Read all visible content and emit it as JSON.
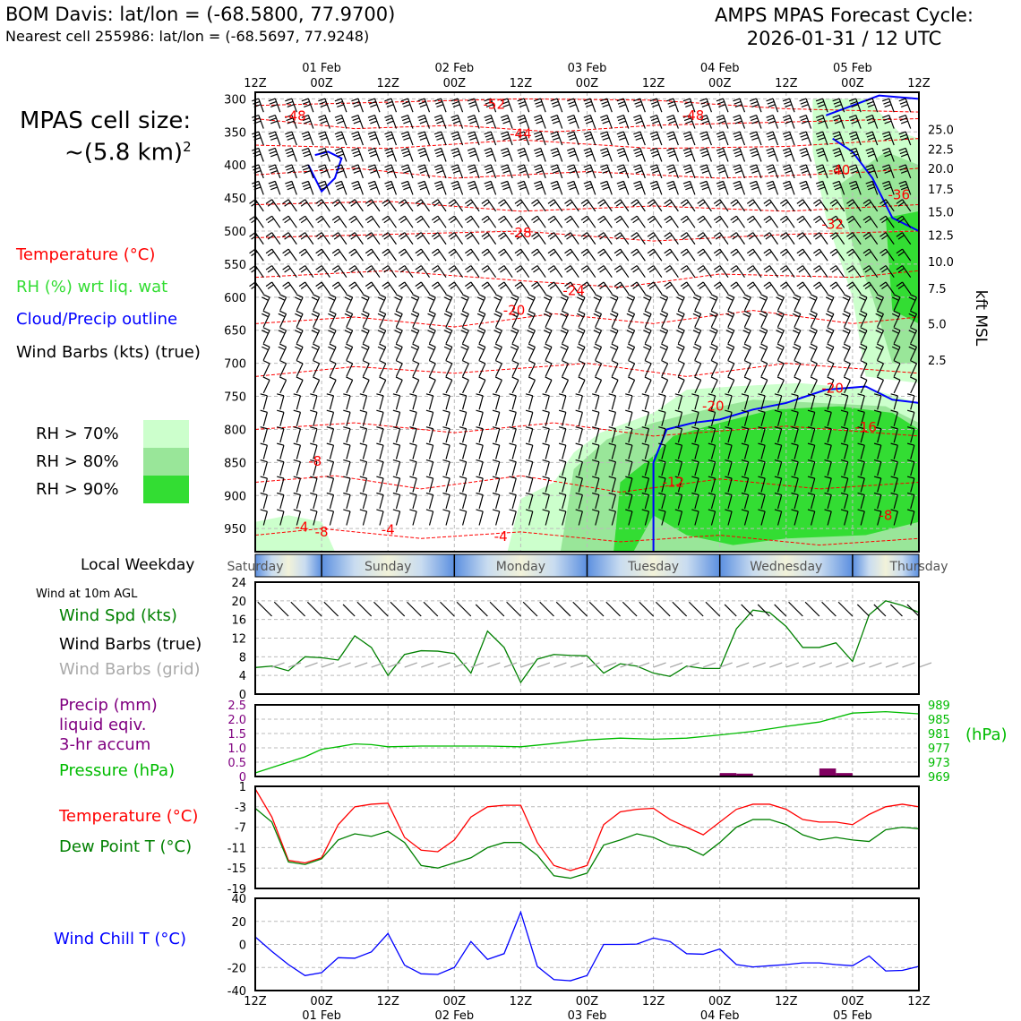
{
  "header": {
    "station": "BOM Davis: lat/lon = (-68.5800, 77.9700)",
    "nearest": "Nearest cell 255986: lat/lon = (-68.5697, 77.9248)",
    "forecast_label": "AMPS MPAS Forecast Cycle:",
    "forecast_cycle": "2026-01-31 / 12 UTC"
  },
  "side": {
    "cell_label": "MPAS cell size:",
    "cell_value": "~(5.8 km)",
    "cell_exp": "2",
    "legend_temp": "Temperature (°C)",
    "legend_rh": "RH (%) wrt liq. wat",
    "legend_cloud": "Cloud/Precip outline",
    "legend_wind": "Wind Barbs (kts) (true)",
    "rh70": "RH > 70%",
    "rh80": "RH > 80%",
    "rh90": "RH > 90%",
    "colors": {
      "rh70": "#ccffcc",
      "rh80": "#99e699",
      "rh90": "#33dd33",
      "cloud": "#0000ff",
      "temp": "#ff0000"
    }
  },
  "weekday": {
    "label": "Local Weekday",
    "days": [
      "Saturday",
      "Sunday",
      "Monday",
      "Tuesday",
      "Wednesday",
      "Thursday"
    ]
  },
  "panels": {
    "wind_title": "Wind at 10m AGL",
    "wind_spd": "Wind Spd (kts)",
    "wind_true": "Wind Barbs (true)",
    "wind_grid": "Wind Barbs (grid)",
    "precip1": "Precip (mm)",
    "precip2": "liquid eqiv.",
    "precip3": "3-hr accum",
    "pressure": "Pressure (hPa)",
    "pressure_unit": "(hPa)",
    "temp": "Temperature (°C)",
    "dewpt": "Dew Point T (°C)",
    "windchill": "Wind Chill T (°C)"
  },
  "chart_data": [
    {
      "type": "contour",
      "name": "time-height cross section",
      "x_ticks": [
        "12Z",
        "00Z",
        "12Z",
        "00Z",
        "12Z",
        "00Z",
        "12Z",
        "00Z",
        "12Z",
        "00Z",
        "12Z"
      ],
      "date_ticks": [
        "01 Feb",
        "02 Feb",
        "03 Feb",
        "04 Feb",
        "05 Feb"
      ],
      "y_ticks_hpa": [
        300,
        350,
        400,
        450,
        500,
        550,
        600,
        650,
        700,
        750,
        800,
        850,
        900,
        950
      ],
      "ylim_hpa": [
        290,
        985
      ],
      "right_ticks_kft": [
        "25.0",
        "22.5",
        "20.0",
        "17.5",
        "15.0",
        "12.5",
        "10.0",
        "7.5",
        "5.0",
        "2.5"
      ],
      "right_ticks_hpa": [
        346,
        376,
        405,
        436,
        471,
        506,
        546,
        587,
        640,
        695
      ],
      "right_label": "kft MSL",
      "temp_labels": [
        {
          "text": "-52",
          "t": 36,
          "p": 308
        },
        {
          "text": "-48",
          "t": 6,
          "p": 326
        },
        {
          "text": "-48",
          "t": 66,
          "p": 325
        },
        {
          "text": "-44",
          "t": 40,
          "p": 353
        },
        {
          "text": "-40",
          "t": 88,
          "p": 408
        },
        {
          "text": "-36",
          "t": 97,
          "p": 445
        },
        {
          "text": "-32",
          "t": 87,
          "p": 490
        },
        {
          "text": "-28",
          "t": 40,
          "p": 503
        },
        {
          "text": "-24",
          "t": 48,
          "p": 590
        },
        {
          "text": "-20",
          "t": 39,
          "p": 620
        },
        {
          "text": "-20",
          "t": 69,
          "p": 765
        },
        {
          "text": "-20",
          "t": 87,
          "p": 738
        },
        {
          "text": "-16",
          "t": 92,
          "p": 797
        },
        {
          "text": "-12",
          "t": 63,
          "p": 880
        },
        {
          "text": "-8",
          "t": 9,
          "p": 848
        },
        {
          "text": "-8",
          "t": 10,
          "p": 955
        },
        {
          "text": "-4",
          "t": 7,
          "p": 948
        },
        {
          "text": "-4",
          "t": 20,
          "p": 952
        },
        {
          "text": "-4",
          "t": 37,
          "p": 962
        },
        {
          "text": "-8",
          "t": 95,
          "p": 930
        }
      ]
    },
    {
      "type": "line",
      "name": "wind speed 10m",
      "x_hours": [
        0,
        3,
        6,
        9,
        12,
        15,
        18,
        21,
        24,
        27,
        30,
        33,
        36,
        39,
        42,
        45,
        48,
        51,
        54,
        57,
        60,
        63,
        66,
        69,
        72,
        75,
        78,
        81,
        84,
        87,
        90,
        93,
        96,
        99,
        102,
        105,
        108,
        111,
        114,
        117,
        120
      ],
      "values": [
        5.7,
        6,
        5,
        8,
        7.8,
        7.3,
        12.5,
        10,
        4,
        8.5,
        9.3,
        9.2,
        8.7,
        4.5,
        13.5,
        10,
        2.5,
        7.5,
        8.5,
        8.3,
        8.2,
        4.5,
        6.5,
        6,
        4.5,
        3.8,
        6,
        5.5,
        5.5,
        14,
        18,
        17.5,
        14.5,
        10,
        10,
        11,
        7,
        17,
        20,
        19,
        17.5
      ],
      "ylim": [
        0,
        24
      ],
      "yticks": [
        0,
        4,
        8,
        12,
        16,
        20,
        24
      ]
    },
    {
      "type": "line",
      "name": "pressure",
      "x_hours": [
        0,
        3,
        6,
        9,
        12,
        15,
        18,
        21,
        24,
        30,
        36,
        42,
        48,
        54,
        60,
        66,
        72,
        78,
        84,
        90,
        96,
        102,
        108,
        114,
        120
      ],
      "values": [
        970,
        971.5,
        973,
        974.5,
        976.6,
        977.3,
        978.1,
        977.9,
        977.3,
        977.5,
        977.5,
        977.5,
        977.3,
        978.2,
        979.2,
        979.7,
        979.4,
        979.7,
        980.6,
        981.6,
        983,
        984.2,
        986.7,
        987.1,
        986.5
      ],
      "ylim": [
        969,
        989
      ],
      "yticks": [
        969,
        973,
        977,
        981,
        985,
        989
      ]
    },
    {
      "type": "bar",
      "name": "precip 3-hr accum (mm)",
      "x_hours": [
        84,
        87,
        102,
        105
      ],
      "values": [
        0.12,
        0.1,
        0.28,
        0.12
      ],
      "ylim": [
        0,
        2.5
      ],
      "yticks": [
        "0",
        "0.5",
        "1.0",
        "1.5",
        "2.0",
        "2.5"
      ]
    },
    {
      "type": "line",
      "name": "temperature and dew point",
      "x_hours": [
        0,
        3,
        6,
        9,
        12,
        15,
        18,
        21,
        24,
        27,
        30,
        33,
        36,
        39,
        42,
        45,
        48,
        51,
        54,
        57,
        60,
        63,
        66,
        69,
        72,
        75,
        78,
        81,
        84,
        87,
        90,
        93,
        96,
        99,
        102,
        105,
        108,
        111,
        114,
        117,
        120
      ],
      "series": [
        {
          "name": "Temperature",
          "values": [
            0.5,
            -5,
            -13.5,
            -14,
            -13,
            -6.5,
            -3,
            -2.5,
            -2.3,
            -9,
            -11.5,
            -11.8,
            -9.5,
            -5,
            -3,
            -2.7,
            -2.7,
            -10,
            -14.5,
            -15.5,
            -14.5,
            -6.5,
            -4,
            -3.5,
            -3.3,
            -5.5,
            -7,
            -8.5,
            -6,
            -3.5,
            -2.5,
            -2.5,
            -3.5,
            -5.5,
            -6,
            -6,
            -6.5,
            -4.5,
            -3,
            -2.5,
            -3
          ]
        },
        {
          "name": "Dew Point",
          "values": [
            -3.3,
            -6,
            -13.8,
            -14.3,
            -13.2,
            -9.5,
            -8.3,
            -8.8,
            -7.8,
            -10,
            -14.5,
            -15,
            -14,
            -13,
            -11,
            -10,
            -10,
            -12.5,
            -16.5,
            -17,
            -16,
            -10.5,
            -9.5,
            -8.3,
            -9,
            -10.5,
            -11,
            -12.5,
            -10,
            -7,
            -5.5,
            -5.5,
            -6.5,
            -8.5,
            -9.5,
            -9,
            -9.5,
            -9.8,
            -7.5,
            -7,
            -7.3
          ]
        }
      ],
      "ylim": [
        -19,
        1
      ],
      "yticks": [
        -19,
        -15,
        -11,
        -7,
        -3,
        1
      ]
    },
    {
      "type": "line",
      "name": "wind chill",
      "x_hours": [
        0,
        3,
        6,
        9,
        12,
        15,
        18,
        21,
        24,
        27,
        30,
        33,
        36,
        39,
        42,
        45,
        48,
        51,
        54,
        57,
        60,
        63,
        66,
        69,
        72,
        75,
        78,
        81,
        84,
        87,
        90,
        93,
        96,
        99,
        102,
        105,
        108,
        111,
        114,
        117,
        120
      ],
      "values": [
        6.5,
        -6,
        -17.5,
        -27,
        -24.5,
        -11.5,
        -12,
        -6.5,
        9.5,
        -18,
        -25.5,
        -26,
        -20,
        2.5,
        -13,
        -8,
        28,
        -19,
        -30.5,
        -31.5,
        -27,
        0,
        0,
        0.3,
        5.5,
        2.5,
        -8,
        -8.5,
        -4,
        -17.5,
        -19.5,
        -18.5,
        -17.5,
        -16,
        -16,
        -17.5,
        -18.5,
        -10,
        -23,
        -22.5,
        -19
      ],
      "ylim": [
        -40,
        40
      ],
      "yticks": [
        -40,
        -20,
        0,
        20,
        40
      ]
    }
  ]
}
